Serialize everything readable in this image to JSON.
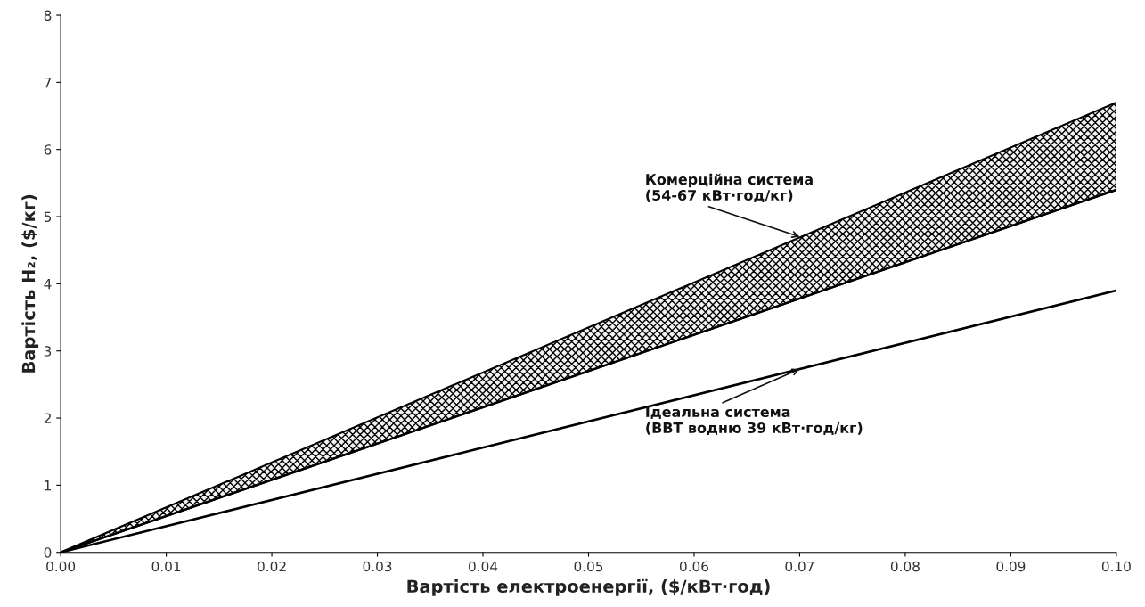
{
  "chart_data": {
    "type": "line",
    "xlabel": "Вартість електроенергії, ($/кВт·год)",
    "ylabel": "Вартість H₂, ($/кг)",
    "x": [
      0,
      0.1
    ],
    "series": [
      {
        "color": "#000000",
        "values": [
          0,
          5.4
        ],
        "lower": [
          0,
          5.4
        ],
        "upper": [
          0,
          6.7
        ]
      },
      {
        "type": "line",
        "color": "#000000",
        "values": [
          0,
          3.9
        ]
      }
    ],
    "annotations": [
      {
        "text": "Комерційна система\n(54-67 кВт·год/кг)",
        "x": 0.07,
        "y": 4.7
      },
      {
        "text": "Ідеальна система\n(ВВТ водню 39 кВт·год/кг)",
        "x": 0.07,
        "y": 2.73
      }
    ],
    "xlim": [
      0,
      0.1
    ],
    "ylim": [
      0,
      8
    ],
    "xticks": [
      {
        "value": 0,
        "label": "0.00"
      },
      {
        "value": 0.01,
        "label": "0.01"
      },
      {
        "value": 0.02,
        "label": "0.02"
      },
      {
        "value": 0.03,
        "label": "0.03"
      },
      {
        "value": 0.04,
        "label": "0.04"
      },
      {
        "value": 0.05,
        "label": "0.05"
      },
      {
        "value": 0.06,
        "label": "0.06"
      },
      {
        "value": 0.07,
        "label": "0.07"
      },
      {
        "value": 0.08,
        "label": "0.08"
      },
      {
        "value": 0.09,
        "label": "0.09"
      },
      {
        "value": 0.1,
        "label": "0.10"
      }
    ],
    "yticks": [
      0,
      1,
      2,
      3,
      4,
      5,
      6,
      7,
      8
    ],
    "grid": false,
    "legend": false
  }
}
